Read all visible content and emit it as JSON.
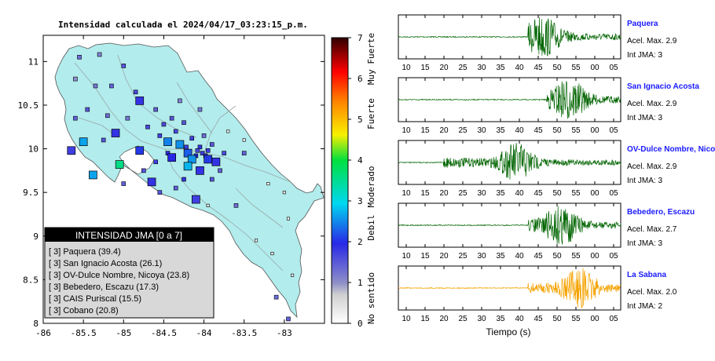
{
  "chart_data": [
    {
      "type": "scatter",
      "title": "Intensidad calculada el 2024/04/17_03:23:15_p.m.",
      "xlim": [
        -86,
        -82.5
      ],
      "ylim": [
        8,
        11.3
      ],
      "x_ticks": [
        "-86",
        "-85.5",
        "-85",
        "-84.5",
        "-84",
        "-83.5",
        "-83"
      ],
      "y_ticks": [
        "8",
        "8.5",
        "9",
        "9.5",
        "10",
        "10.5",
        "11"
      ],
      "grid": false,
      "colorbar": {
        "range": [
          0,
          7
        ],
        "ticks": [
          "0",
          "1",
          "2",
          "3",
          "4",
          "5",
          "6",
          "7"
        ],
        "labels": [
          "No sentido",
          "Debil",
          "Moderado",
          "Fuerte",
          "Muy Fuerte"
        ]
      },
      "legend": {
        "title": "INTENSIDAD JMA [0 a 7]",
        "placement": "bottom-left",
        "entries": [
          "[ 3] Paquera (39.4)",
          "[ 3] San Ignacio Acosta (26.1)",
          "[ 3] OV-Dulce Nombre, Nicoya (23.8)",
          "[ 3] Bebedero, Escazu (17.3)",
          "[ 3] CAIS Puriscal (15.5)",
          "[ 3] Cobano (20.8)"
        ]
      },
      "stations_large": [
        {
          "x": -85.65,
          "y": 9.98,
          "v": 1.8
        },
        {
          "x": -85.5,
          "y": 10.08,
          "v": 2.7
        },
        {
          "x": -85.1,
          "y": 10.18,
          "v": 1.9
        },
        {
          "x": -85.38,
          "y": 9.7,
          "v": 2.7
        },
        {
          "x": -85.05,
          "y": 9.82,
          "v": 3.6
        },
        {
          "x": -84.8,
          "y": 9.98,
          "v": 2.1
        },
        {
          "x": -84.45,
          "y": 10.08,
          "v": 2.5
        },
        {
          "x": -84.3,
          "y": 10.05,
          "v": 2.6
        },
        {
          "x": -84.2,
          "y": 9.95,
          "v": 2.3
        },
        {
          "x": -84.4,
          "y": 9.9,
          "v": 2.0
        },
        {
          "x": -84.15,
          "y": 9.88,
          "v": 2.6
        },
        {
          "x": -84.2,
          "y": 9.8,
          "v": 2.8
        },
        {
          "x": -84.05,
          "y": 9.75,
          "v": 1.9
        },
        {
          "x": -83.85,
          "y": 9.85,
          "v": 1.9
        },
        {
          "x": -84.65,
          "y": 9.62,
          "v": 1.9
        },
        {
          "x": -84.1,
          "y": 9.42,
          "v": 1.8
        },
        {
          "x": -84.8,
          "y": 10.55,
          "v": 1.9
        },
        {
          "x": -83.95,
          "y": 9.88,
          "v": 2.1
        }
      ],
      "stations_small": [
        {
          "x": -85.55,
          "y": 11.05,
          "v": 1.4
        },
        {
          "x": -85.3,
          "y": 11.08,
          "v": 1.2
        },
        {
          "x": -85.0,
          "y": 10.95,
          "v": 1.6
        },
        {
          "x": -85.15,
          "y": 10.72,
          "v": 1.5
        },
        {
          "x": -85.35,
          "y": 10.72,
          "v": 1.3
        },
        {
          "x": -85.6,
          "y": 10.8,
          "v": 1.1
        },
        {
          "x": -84.85,
          "y": 10.65,
          "v": 1.7
        },
        {
          "x": -85.45,
          "y": 10.45,
          "v": 1.6
        },
        {
          "x": -85.6,
          "y": 10.35,
          "v": 1.5
        },
        {
          "x": -85.2,
          "y": 10.38,
          "v": 1.4
        },
        {
          "x": -85.25,
          "y": 10.1,
          "v": 1.6
        },
        {
          "x": -84.95,
          "y": 10.35,
          "v": 1.3
        },
        {
          "x": -84.6,
          "y": 10.45,
          "v": 1.5
        },
        {
          "x": -84.7,
          "y": 10.25,
          "v": 1.7
        },
        {
          "x": -84.4,
          "y": 10.35,
          "v": 1.6
        },
        {
          "x": -84.3,
          "y": 10.55,
          "v": 1.2
        },
        {
          "x": -84.55,
          "y": 10.15,
          "v": 1.8
        },
        {
          "x": -84.35,
          "y": 10.2,
          "v": 1.7
        },
        {
          "x": -84.25,
          "y": 10.3,
          "v": 1.6
        },
        {
          "x": -84.05,
          "y": 10.45,
          "v": 1.3
        },
        {
          "x": -84.0,
          "y": 10.15,
          "v": 1.4
        },
        {
          "x": -84.15,
          "y": 10.12,
          "v": 1.8
        },
        {
          "x": -84.05,
          "y": 10.02,
          "v": 1.9
        },
        {
          "x": -83.95,
          "y": 9.98,
          "v": 1.8
        },
        {
          "x": -83.9,
          "y": 10.05,
          "v": 1.6
        },
        {
          "x": -83.75,
          "y": 9.95,
          "v": 1.7
        },
        {
          "x": -83.7,
          "y": 10.2,
          "v": 0.2
        },
        {
          "x": -83.5,
          "y": 10.1,
          "v": 0.3
        },
        {
          "x": -83.8,
          "y": 9.75,
          "v": 1.5
        },
        {
          "x": -83.9,
          "y": 9.65,
          "v": 1.6
        },
        {
          "x": -84.25,
          "y": 9.65,
          "v": 1.9
        },
        {
          "x": -84.55,
          "y": 9.5,
          "v": 1.6
        },
        {
          "x": -84.35,
          "y": 9.55,
          "v": 1.5
        },
        {
          "x": -83.95,
          "y": 9.35,
          "v": 0.3
        },
        {
          "x": -83.6,
          "y": 9.35,
          "v": 1.4
        },
        {
          "x": -83.5,
          "y": 9.95,
          "v": 1.5
        },
        {
          "x": -84.6,
          "y": 9.85,
          "v": 1.8
        },
        {
          "x": -84.75,
          "y": 9.75,
          "v": 1.6
        },
        {
          "x": -85.0,
          "y": 9.6,
          "v": 1.5
        },
        {
          "x": -83.2,
          "y": 9.6,
          "v": 0.2
        },
        {
          "x": -83.0,
          "y": 9.5,
          "v": 0.3
        },
        {
          "x": -82.95,
          "y": 9.2,
          "v": 0.2
        },
        {
          "x": -83.15,
          "y": 8.8,
          "v": 0.3
        },
        {
          "x": -83.35,
          "y": 8.95,
          "v": 0.2
        },
        {
          "x": -82.9,
          "y": 8.55,
          "v": 0.3
        },
        {
          "x": -83.1,
          "y": 8.3,
          "v": 1.4
        },
        {
          "x": -82.95,
          "y": 8.05,
          "v": 1.5
        },
        {
          "x": -84.45,
          "y": 9.95,
          "v": 1.9
        },
        {
          "x": -84.1,
          "y": 9.92,
          "v": 2.0
        },
        {
          "x": -84.02,
          "y": 9.95,
          "v": 1.8
        },
        {
          "x": -83.98,
          "y": 9.92,
          "v": 1.9
        },
        {
          "x": -84.08,
          "y": 9.98,
          "v": 1.7
        },
        {
          "x": -84.22,
          "y": 10.02,
          "v": 1.8
        },
        {
          "x": -84.5,
          "y": 10.28,
          "v": 1.7
        }
      ]
    },
    {
      "type": "line",
      "xlabel": "Tiempo (s)",
      "x_ticks": [
        "10",
        "15",
        "20",
        "25",
        "30",
        "35",
        "40",
        "45",
        "50",
        "55",
        "00",
        "05"
      ],
      "series": [
        {
          "name": "Paquera",
          "accel": "Acel. Max. 2.9",
          "jma": "Int JMA: 3",
          "color": "#006400",
          "onset": 43,
          "peak": 47
        },
        {
          "name": "San Ignacio Acosta",
          "accel": "Acel. Max. 2.9",
          "jma": "Int JMA: 3",
          "color": "#006400",
          "onset": 48,
          "peak": 54
        },
        {
          "name": "OV-Dulce Nombre, Nicoya",
          "accel": "Acel. Max. 2.9",
          "jma": "Int JMA: 3",
          "color": "#006400",
          "onset": 20,
          "peak": 40
        },
        {
          "name": "Bebedero, Escazu",
          "accel": "Acel. Max. 2.7",
          "jma": "Int JMA: 3",
          "color": "#006400",
          "onset": 43,
          "peak": 52
        },
        {
          "name": "La Sabana",
          "accel": "Acel. Max. 2.0",
          "jma": "Int JMA: 2",
          "color": "#f5a300",
          "onset": 43,
          "peak": 57
        }
      ]
    }
  ]
}
